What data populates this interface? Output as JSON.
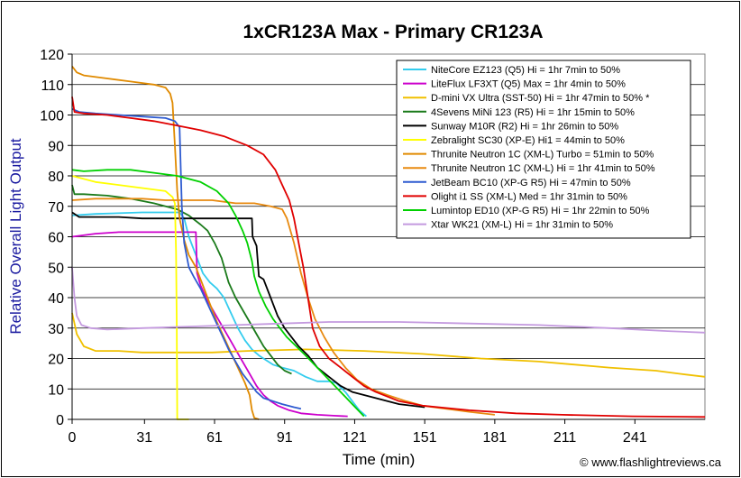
{
  "chart_data": {
    "type": "line",
    "title": "1xCR123A Max - Primary CR123A",
    "xlabel": "Time (min)",
    "ylabel": "Relative Overall Light Output",
    "xlim": [
      0,
      271
    ],
    "ylim": [
      0,
      120
    ],
    "x_ticks": [
      0,
      31,
      61,
      91,
      121,
      151,
      181,
      211,
      241
    ],
    "y_ticks": [
      0,
      10,
      20,
      30,
      40,
      50,
      60,
      70,
      80,
      90,
      100,
      110,
      120
    ],
    "grid": "horizontal",
    "legend_position": "top-right",
    "copyright": "© www.flashlightreviews.ca",
    "series": [
      {
        "name": "NiteCore EZ123 (Q5) Hi = 1hr 7min to 50%",
        "color": "#33ccee",
        "points": [
          [
            0,
            67
          ],
          [
            10,
            67.5
          ],
          [
            30,
            68
          ],
          [
            46,
            68
          ],
          [
            48,
            66
          ],
          [
            50,
            60
          ],
          [
            53,
            54
          ],
          [
            56,
            48
          ],
          [
            59,
            45
          ],
          [
            62,
            43
          ],
          [
            65,
            40
          ],
          [
            68,
            35
          ],
          [
            71,
            30
          ],
          [
            74,
            26
          ],
          [
            77,
            23
          ],
          [
            80,
            21
          ],
          [
            83,
            19.5
          ],
          [
            86,
            18
          ],
          [
            90,
            17
          ],
          [
            95,
            16
          ],
          [
            100,
            14
          ],
          [
            105,
            12.5
          ],
          [
            110,
            12.5
          ],
          [
            113,
            12
          ],
          [
            117,
            9
          ],
          [
            120,
            6
          ],
          [
            123,
            3
          ],
          [
            126,
            1
          ]
        ]
      },
      {
        "name": "LiteFlux LF3XT (Q5) Max = 1hr 4min to 50%",
        "color": "#cc00cc",
        "points": [
          [
            0,
            60
          ],
          [
            10,
            61
          ],
          [
            20,
            61.5
          ],
          [
            30,
            61.5
          ],
          [
            40,
            61.5
          ],
          [
            53,
            61.5
          ],
          [
            53.5,
            48
          ],
          [
            55,
            44
          ],
          [
            58,
            39
          ],
          [
            61,
            35
          ],
          [
            64,
            31
          ],
          [
            67,
            27
          ],
          [
            70,
            23
          ],
          [
            73,
            19
          ],
          [
            76,
            15
          ],
          [
            79,
            11
          ],
          [
            82,
            8
          ],
          [
            85,
            6
          ],
          [
            88,
            4.5
          ],
          [
            93,
            3
          ],
          [
            98,
            2
          ],
          [
            105,
            1.5
          ],
          [
            112,
            1.2
          ],
          [
            118,
            1
          ]
        ]
      },
      {
        "name": "D-mini VX Ultra (SST-50) Hi = 1hr 47min to 50% *",
        "color": "#f0c000",
        "points": [
          [
            0,
            35
          ],
          [
            2,
            28
          ],
          [
            5,
            24
          ],
          [
            10,
            22.5
          ],
          [
            20,
            22.5
          ],
          [
            30,
            22
          ],
          [
            40,
            22
          ],
          [
            50,
            22
          ],
          [
            60,
            22
          ],
          [
            75,
            22.5
          ],
          [
            100,
            23
          ],
          [
            125,
            22.5
          ],
          [
            150,
            21.5
          ],
          [
            175,
            20
          ],
          [
            200,
            19
          ],
          [
            230,
            17
          ],
          [
            250,
            16
          ],
          [
            260,
            15
          ],
          [
            271,
            14
          ]
        ]
      },
      {
        "name": "4Sevens MiNi 123 (R5) Hi = 1hr 15min to 50%",
        "color": "#1a7a1a",
        "points": [
          [
            0,
            77
          ],
          [
            1,
            74
          ],
          [
            5,
            74
          ],
          [
            15,
            73.5
          ],
          [
            25,
            72.5
          ],
          [
            35,
            71
          ],
          [
            45,
            69
          ],
          [
            50,
            67
          ],
          [
            55,
            64
          ],
          [
            58,
            62
          ],
          [
            61,
            58
          ],
          [
            64,
            53
          ],
          [
            67,
            45
          ],
          [
            70,
            40
          ],
          [
            73,
            36
          ],
          [
            76,
            32
          ],
          [
            79,
            28
          ],
          [
            82,
            24
          ],
          [
            85,
            21
          ],
          [
            88,
            18
          ],
          [
            91,
            16
          ],
          [
            94,
            15
          ]
        ]
      },
      {
        "name": "Sunway M10R (R2) Hi = 1hr 26min to 50%",
        "color": "#000000",
        "points": [
          [
            0,
            68
          ],
          [
            3,
            66.5
          ],
          [
            10,
            66.5
          ],
          [
            20,
            66.5
          ],
          [
            30,
            66
          ],
          [
            40,
            66
          ],
          [
            50,
            66
          ],
          [
            60,
            66
          ],
          [
            70,
            66
          ],
          [
            77,
            66
          ],
          [
            77.3,
            60
          ],
          [
            79,
            57
          ],
          [
            80,
            47
          ],
          [
            82,
            46
          ],
          [
            85,
            40
          ],
          [
            88,
            34
          ],
          [
            91,
            30
          ],
          [
            94,
            27
          ],
          [
            97,
            24
          ],
          [
            101,
            21
          ],
          [
            105,
            17
          ],
          [
            110,
            14
          ],
          [
            115,
            11
          ],
          [
            120,
            9
          ],
          [
            125,
            8
          ],
          [
            130,
            7
          ],
          [
            140,
            5
          ],
          [
            151,
            4
          ]
        ]
      },
      {
        "name": "Zebralight SC30 (XP-E) Hi1 = 44min to 50%",
        "color": "#ffff00",
        "points": [
          [
            0,
            80
          ],
          [
            5,
            79
          ],
          [
            10,
            78
          ],
          [
            20,
            77
          ],
          [
            30,
            76
          ],
          [
            40,
            75
          ],
          [
            43,
            73
          ],
          [
            44,
            71
          ],
          [
            44.5,
            55
          ],
          [
            44.8,
            30
          ],
          [
            45,
            0
          ],
          [
            50,
            0
          ]
        ]
      },
      {
        "name": "Thrunite Neutron 1C (XM-L) Turbo = 51min to 50%",
        "color": "#e08a00",
        "points": [
          [
            0,
            116
          ],
          [
            2,
            114
          ],
          [
            5,
            113
          ],
          [
            15,
            112
          ],
          [
            25,
            111
          ],
          [
            35,
            110
          ],
          [
            40,
            109
          ],
          [
            42,
            107
          ],
          [
            43,
            104
          ],
          [
            44,
            90
          ],
          [
            45,
            75
          ],
          [
            46,
            66
          ],
          [
            48,
            59
          ],
          [
            50,
            54
          ],
          [
            53,
            50
          ],
          [
            56,
            44
          ],
          [
            59,
            38
          ],
          [
            62,
            32
          ],
          [
            65,
            27
          ],
          [
            68,
            22
          ],
          [
            71,
            17
          ],
          [
            74,
            12
          ],
          [
            76,
            8
          ],
          [
            77,
            3
          ],
          [
            78,
            0.5
          ],
          [
            80,
            0
          ]
        ]
      },
      {
        "name": "Thrunite Neutron 1C (XM-L) Hi = 1hr 41min to 50%",
        "color": "#e88a10",
        "points": [
          [
            0,
            72
          ],
          [
            10,
            72.5
          ],
          [
            20,
            72.5
          ],
          [
            30,
            72.5
          ],
          [
            40,
            72
          ],
          [
            50,
            72
          ],
          [
            60,
            72
          ],
          [
            70,
            71
          ],
          [
            78,
            71
          ],
          [
            85,
            70
          ],
          [
            90,
            69
          ],
          [
            92,
            66
          ],
          [
            95,
            58
          ],
          [
            98,
            48
          ],
          [
            101,
            40
          ],
          [
            104,
            33
          ],
          [
            108,
            27
          ],
          [
            112,
            22
          ],
          [
            117,
            17
          ],
          [
            122,
            13
          ],
          [
            128,
            10
          ],
          [
            135,
            8
          ],
          [
            143,
            6
          ],
          [
            150,
            4.5
          ],
          [
            160,
            3.5
          ],
          [
            170,
            2.5
          ],
          [
            181,
            1.5
          ]
        ]
      },
      {
        "name": "JetBeam BC10 (XP-G R5) Hi = 47min to 50%",
        "color": "#2e5bd0",
        "points": [
          [
            0,
            102
          ],
          [
            3,
            101
          ],
          [
            10,
            100.5
          ],
          [
            20,
            100
          ],
          [
            30,
            99.5
          ],
          [
            40,
            99
          ],
          [
            44,
            98
          ],
          [
            46,
            96
          ],
          [
            47,
            70
          ],
          [
            48,
            58
          ],
          [
            50,
            50
          ],
          [
            52,
            47
          ],
          [
            55,
            43
          ],
          [
            58,
            38
          ],
          [
            61,
            33
          ],
          [
            64,
            28
          ],
          [
            67,
            23
          ],
          [
            70,
            19
          ],
          [
            73,
            15
          ],
          [
            76,
            12
          ],
          [
            79,
            9
          ],
          [
            82,
            7
          ],
          [
            86,
            6
          ],
          [
            90,
            5
          ],
          [
            95,
            4
          ],
          [
            98,
            3.5
          ]
        ]
      },
      {
        "name": "Olight i1 SS (XM-L) Med = 1hr 31min to 50%",
        "color": "#e00000",
        "points": [
          [
            0,
            106
          ],
          [
            1,
            101
          ],
          [
            5,
            100.5
          ],
          [
            15,
            100
          ],
          [
            25,
            99
          ],
          [
            35,
            98
          ],
          [
            45,
            96.5
          ],
          [
            55,
            95
          ],
          [
            65,
            93
          ],
          [
            75,
            90
          ],
          [
            82,
            87
          ],
          [
            87,
            82
          ],
          [
            90,
            77
          ],
          [
            93,
            72
          ],
          [
            95,
            66
          ],
          [
            97,
            58
          ],
          [
            99,
            50
          ],
          [
            101,
            40
          ],
          [
            103,
            30
          ],
          [
            106,
            24
          ],
          [
            110,
            20
          ],
          [
            115,
            17
          ],
          [
            120,
            14
          ],
          [
            125,
            11
          ],
          [
            130,
            9
          ],
          [
            140,
            6
          ],
          [
            150,
            4.5
          ],
          [
            170,
            3
          ],
          [
            190,
            2
          ],
          [
            210,
            1.5
          ],
          [
            240,
            1
          ],
          [
            271,
            0.8
          ]
        ]
      },
      {
        "name": "Lumintop ED10 (XP-G R5) Hi = 1hr 22min to 50%",
        "color": "#00d000",
        "points": [
          [
            0,
            82
          ],
          [
            5,
            81.5
          ],
          [
            15,
            82
          ],
          [
            25,
            82
          ],
          [
            35,
            81
          ],
          [
            45,
            80
          ],
          [
            55,
            78
          ],
          [
            62,
            75
          ],
          [
            67,
            71
          ],
          [
            70,
            67
          ],
          [
            73,
            62
          ],
          [
            75,
            58
          ],
          [
            77,
            52
          ],
          [
            78,
            47
          ],
          [
            80,
            42
          ],
          [
            83,
            37
          ],
          [
            86,
            33
          ],
          [
            89,
            30
          ],
          [
            92,
            27
          ],
          [
            96,
            24
          ],
          [
            100,
            21
          ],
          [
            105,
            17
          ],
          [
            110,
            13
          ],
          [
            115,
            9
          ],
          [
            120,
            5
          ],
          [
            125,
            1
          ]
        ]
      },
      {
        "name": "Xtar WK21 (XM-L) Hi = 1hr 31min to 50%",
        "color": "#c49adf",
        "points": [
          [
            0,
            50
          ],
          [
            1,
            40
          ],
          [
            2,
            34
          ],
          [
            4,
            31
          ],
          [
            8,
            30
          ],
          [
            15,
            29.5
          ],
          [
            30,
            30
          ],
          [
            50,
            30.5
          ],
          [
            70,
            31
          ],
          [
            90,
            31.5
          ],
          [
            110,
            32
          ],
          [
            140,
            32
          ],
          [
            170,
            31.5
          ],
          [
            200,
            31
          ],
          [
            230,
            30
          ],
          [
            255,
            29
          ],
          [
            271,
            28.5
          ]
        ]
      }
    ]
  }
}
